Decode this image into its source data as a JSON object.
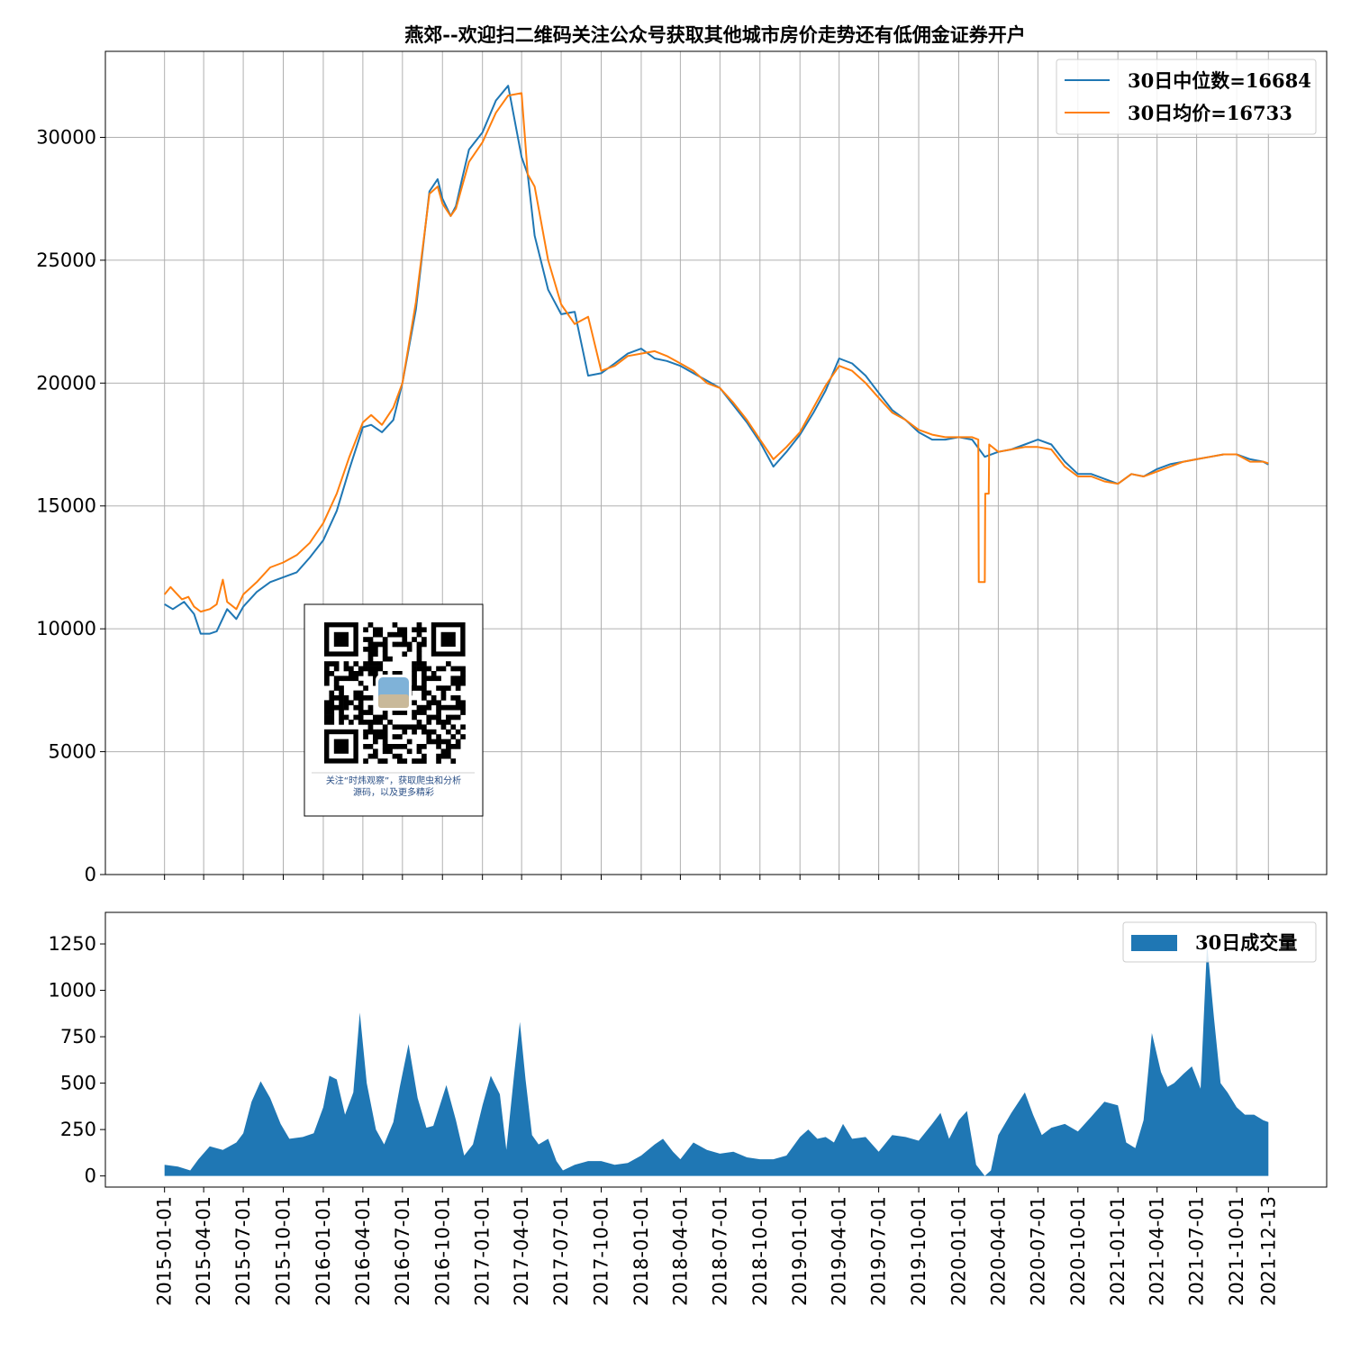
{
  "title": "燕郊--欢迎扫二维码关注公众号获取其他城市房价走势还有低佣金证券开户",
  "colors": {
    "median": "#1f77b4",
    "mean": "#ff7f0e",
    "volume": "#1f77b4",
    "grid": "#b0b0b0"
  },
  "qr_card": {
    "caption_line1": "关注“时炜观察”，获取爬虫和分析",
    "caption_line2": "源码，以及更多精彩"
  },
  "chart_data": [
    {
      "type": "line",
      "ylim": [
        0,
        33500
      ],
      "yticks": [
        0,
        5000,
        10000,
        15000,
        20000,
        25000,
        30000
      ],
      "grid": true,
      "legend_position": "top-right",
      "series": [
        {
          "name": "30日中位数=16684",
          "x": [
            "2015-01-01",
            "2015-01-20",
            "2015-02-15",
            "2015-03-10",
            "2015-03-25",
            "2015-04-15",
            "2015-05-01",
            "2015-05-25",
            "2015-06-15",
            "2015-07-01",
            "2015-08-01",
            "2015-09-01",
            "2015-10-01",
            "2015-11-01",
            "2015-12-01",
            "2016-01-01",
            "2016-02-01",
            "2016-03-01",
            "2016-04-01",
            "2016-04-20",
            "2016-05-15",
            "2016-06-10",
            "2016-07-01",
            "2016-08-01",
            "2016-09-01",
            "2016-09-20",
            "2016-10-01",
            "2016-10-20",
            "2016-11-01",
            "2016-11-15",
            "2016-12-01",
            "2017-01-01",
            "2017-02-01",
            "2017-03-01",
            "2017-04-01",
            "2017-04-15",
            "2017-05-01",
            "2017-06-01",
            "2017-07-01",
            "2017-08-01",
            "2017-09-01",
            "2017-10-01",
            "2017-11-01",
            "2017-12-01",
            "2018-01-01",
            "2018-02-01",
            "2018-03-01",
            "2018-04-01",
            "2018-05-01",
            "2018-06-01",
            "2018-07-01",
            "2018-08-01",
            "2018-09-01",
            "2018-10-01",
            "2018-11-01",
            "2018-12-01",
            "2019-01-01",
            "2019-02-01",
            "2019-03-01",
            "2019-04-01",
            "2019-05-01",
            "2019-06-01",
            "2019-07-01",
            "2019-08-01",
            "2019-09-01",
            "2019-10-01",
            "2019-11-01",
            "2019-12-01",
            "2020-01-01",
            "2020-02-01",
            "2020-03-01",
            "2020-04-01",
            "2020-05-01",
            "2020-06-01",
            "2020-07-01",
            "2020-08-01",
            "2020-09-01",
            "2020-10-01",
            "2020-11-01",
            "2020-12-01",
            "2021-01-01",
            "2021-02-01",
            "2021-03-01",
            "2021-04-01",
            "2021-05-01",
            "2021-06-01",
            "2021-07-01",
            "2021-08-01",
            "2021-09-01",
            "2021-10-01",
            "2021-11-01",
            "2021-12-01",
            "2021-12-13"
          ],
          "values": [
            11000,
            10800,
            11100,
            10600,
            9800,
            9800,
            9900,
            10800,
            10400,
            10900,
            11500,
            11900,
            12100,
            12300,
            12900,
            13600,
            14800,
            16500,
            18200,
            18300,
            18000,
            18500,
            20000,
            23000,
            27800,
            28300,
            27500,
            26800,
            27200,
            28300,
            29500,
            30200,
            31500,
            32100,
            29200,
            28500,
            26000,
            23800,
            22800,
            22900,
            20300,
            20400,
            20800,
            21200,
            21400,
            21000,
            20900,
            20700,
            20400,
            20100,
            19800,
            19100,
            18400,
            17600,
            16600,
            17200,
            17900,
            18800,
            19700,
            21000,
            20800,
            20300,
            19600,
            18900,
            18500,
            18000,
            17700,
            17700,
            17800,
            17700,
            17000,
            17200,
            17300,
            17500,
            17700,
            17500,
            16800,
            16300,
            16300,
            16100,
            15900,
            16300,
            16200,
            16500,
            16700,
            16800,
            16900,
            17000,
            17100,
            17100,
            16900,
            16800,
            16684
          ]
        },
        {
          "name": "30日均价=16733",
          "x": [
            "2015-01-01",
            "2015-01-15",
            "2015-01-25",
            "2015-02-10",
            "2015-02-25",
            "2015-03-10",
            "2015-03-25",
            "2015-04-15",
            "2015-05-01",
            "2015-05-15",
            "2015-05-25",
            "2015-06-15",
            "2015-07-01",
            "2015-08-01",
            "2015-09-01",
            "2015-10-01",
            "2015-11-01",
            "2015-12-01",
            "2016-01-01",
            "2016-02-01",
            "2016-03-01",
            "2016-04-01",
            "2016-04-20",
            "2016-05-15",
            "2016-06-10",
            "2016-07-01",
            "2016-08-01",
            "2016-09-01",
            "2016-09-20",
            "2016-10-01",
            "2016-10-20",
            "2016-11-01",
            "2016-11-15",
            "2016-12-01",
            "2017-01-01",
            "2017-02-01",
            "2017-03-01",
            "2017-04-01",
            "2017-04-15",
            "2017-05-01",
            "2017-06-01",
            "2017-07-01",
            "2017-08-01",
            "2017-09-01",
            "2017-10-01",
            "2017-11-01",
            "2017-12-01",
            "2018-01-01",
            "2018-02-01",
            "2018-03-01",
            "2018-04-01",
            "2018-05-01",
            "2018-06-01",
            "2018-07-01",
            "2018-08-01",
            "2018-09-01",
            "2018-10-01",
            "2018-11-01",
            "2018-12-01",
            "2019-01-01",
            "2019-02-01",
            "2019-03-01",
            "2019-04-01",
            "2019-05-01",
            "2019-06-01",
            "2019-07-01",
            "2019-08-01",
            "2019-09-01",
            "2019-10-01",
            "2019-11-01",
            "2019-12-01",
            "2020-01-01",
            "2020-02-01",
            "2020-02-15",
            "2020-02-16",
            "2020-03-01",
            "2020-03-02",
            "2020-03-10",
            "2020-03-11",
            "2020-04-01",
            "2020-05-01",
            "2020-06-01",
            "2020-07-01",
            "2020-08-01",
            "2020-09-01",
            "2020-10-01",
            "2020-11-01",
            "2020-12-01",
            "2021-01-01",
            "2021-02-01",
            "2021-03-01",
            "2021-04-01",
            "2021-05-01",
            "2021-06-01",
            "2021-07-01",
            "2021-08-01",
            "2021-09-01",
            "2021-10-01",
            "2021-11-01",
            "2021-12-01",
            "2021-12-13"
          ],
          "values": [
            11400,
            11700,
            11500,
            11200,
            11300,
            10900,
            10700,
            10800,
            11000,
            12000,
            11100,
            10800,
            11400,
            11900,
            12500,
            12700,
            13000,
            13500,
            14300,
            15500,
            17000,
            18400,
            18700,
            18300,
            19000,
            20000,
            23300,
            27700,
            28000,
            27300,
            26800,
            27100,
            28000,
            29000,
            29800,
            31000,
            31700,
            31800,
            28500,
            28000,
            25000,
            23200,
            22400,
            22700,
            20500,
            20700,
            21100,
            21200,
            21300,
            21100,
            20800,
            20500,
            20000,
            19800,
            19200,
            18500,
            17700,
            16900,
            17400,
            18000,
            19000,
            19900,
            20700,
            20500,
            20000,
            19400,
            18800,
            18500,
            18100,
            17900,
            17800,
            17800,
            17800,
            17700,
            11900,
            11900,
            15500,
            15500,
            17500,
            17200,
            17300,
            17400,
            17400,
            17300,
            16600,
            16200,
            16200,
            16000,
            15900,
            16300,
            16200,
            16400,
            16600,
            16800,
            16900,
            17000,
            17100,
            17100,
            16800,
            16800,
            16733
          ]
        }
      ]
    },
    {
      "type": "area",
      "ylim": [
        -60,
        1420
      ],
      "yticks": [
        0,
        250,
        500,
        750,
        1000,
        1250
      ],
      "grid": false,
      "legend_position": "top-right",
      "series": [
        {
          "name": "30日成交量",
          "x": [
            "2015-01-01",
            "2015-02-01",
            "2015-03-01",
            "2015-03-20",
            "2015-04-15",
            "2015-05-15",
            "2015-06-15",
            "2015-07-01",
            "2015-07-20",
            "2015-08-10",
            "2015-09-01",
            "2015-09-25",
            "2015-10-15",
            "2015-11-15",
            "2015-12-10",
            "2016-01-01",
            "2016-01-15",
            "2016-02-01",
            "2016-02-20",
            "2016-03-10",
            "2016-03-25",
            "2016-04-10",
            "2016-05-01",
            "2016-05-20",
            "2016-06-10",
            "2016-06-25",
            "2016-07-15",
            "2016-08-05",
            "2016-08-25",
            "2016-09-10",
            "2016-09-25",
            "2016-10-10",
            "2016-11-01",
            "2016-11-20",
            "2016-12-10",
            "2017-01-01",
            "2017-01-20",
            "2017-02-10",
            "2017-02-25",
            "2017-03-15",
            "2017-03-28",
            "2017-04-10",
            "2017-04-25",
            "2017-05-10",
            "2017-06-01",
            "2017-06-20",
            "2017-07-05",
            "2017-08-01",
            "2017-09-01",
            "2017-10-01",
            "2017-11-01",
            "2017-12-01",
            "2018-01-01",
            "2018-02-01",
            "2018-02-20",
            "2018-03-15",
            "2018-04-01",
            "2018-05-01",
            "2018-06-01",
            "2018-07-01",
            "2018-08-01",
            "2018-09-01",
            "2018-10-01",
            "2018-11-01",
            "2018-12-01",
            "2019-01-01",
            "2019-01-20",
            "2019-02-10",
            "2019-03-01",
            "2019-03-20",
            "2019-04-10",
            "2019-05-01",
            "2019-06-01",
            "2019-07-01",
            "2019-08-01",
            "2019-09-01",
            "2019-10-01",
            "2019-11-01",
            "2019-11-20",
            "2019-12-10",
            "2020-01-01",
            "2020-01-20",
            "2020-02-10",
            "2020-03-01",
            "2020-03-15",
            "2020-04-01",
            "2020-05-01",
            "2020-06-01",
            "2020-06-20",
            "2020-07-10",
            "2020-08-01",
            "2020-09-01",
            "2020-10-01",
            "2020-11-01",
            "2020-12-01",
            "2021-01-01",
            "2021-01-20",
            "2021-02-10",
            "2021-03-01",
            "2021-03-20",
            "2021-04-10",
            "2021-04-25",
            "2021-05-10",
            "2021-06-01",
            "2021-06-20",
            "2021-07-10",
            "2021-07-25",
            "2021-08-10",
            "2021-08-25",
            "2021-09-10",
            "2021-10-01",
            "2021-10-20",
            "2021-11-10",
            "2021-12-01",
            "2021-12-13"
          ],
          "values": [
            60,
            50,
            30,
            90,
            160,
            140,
            180,
            230,
            400,
            510,
            420,
            280,
            200,
            210,
            230,
            370,
            540,
            520,
            330,
            450,
            880,
            500,
            250,
            170,
            290,
            480,
            710,
            420,
            260,
            270,
            380,
            490,
            300,
            110,
            170,
            380,
            540,
            440,
            140,
            550,
            830,
            520,
            220,
            170,
            200,
            80,
            30,
            60,
            80,
            80,
            60,
            70,
            110,
            170,
            200,
            130,
            90,
            180,
            140,
            120,
            130,
            100,
            90,
            90,
            110,
            210,
            250,
            200,
            210,
            180,
            280,
            200,
            210,
            130,
            220,
            210,
            190,
            280,
            340,
            200,
            300,
            350,
            60,
            0,
            30,
            220,
            340,
            450,
            330,
            220,
            260,
            280,
            240,
            320,
            400,
            380,
            180,
            150,
            300,
            770,
            560,
            480,
            500,
            550,
            590,
            470,
            1250,
            850,
            500,
            450,
            370,
            330,
            330,
            300,
            290
          ]
        }
      ]
    }
  ],
  "x_axis": {
    "ticks": [
      "2015-01-01",
      "2015-04-01",
      "2015-07-01",
      "2015-10-01",
      "2016-01-01",
      "2016-04-01",
      "2016-07-01",
      "2016-10-01",
      "2017-01-01",
      "2017-04-01",
      "2017-07-01",
      "2017-10-01",
      "2018-01-01",
      "2018-04-01",
      "2018-07-01",
      "2018-10-01",
      "2019-01-01",
      "2019-04-01",
      "2019-07-01",
      "2019-10-01",
      "2020-01-01",
      "2020-04-01",
      "2020-07-01",
      "2020-10-01",
      "2021-01-01",
      "2021-04-01",
      "2021-07-01",
      "2021-10-01",
      "2021-12-13"
    ],
    "range": [
      "2014-08-18",
      "2022-04-26"
    ]
  }
}
